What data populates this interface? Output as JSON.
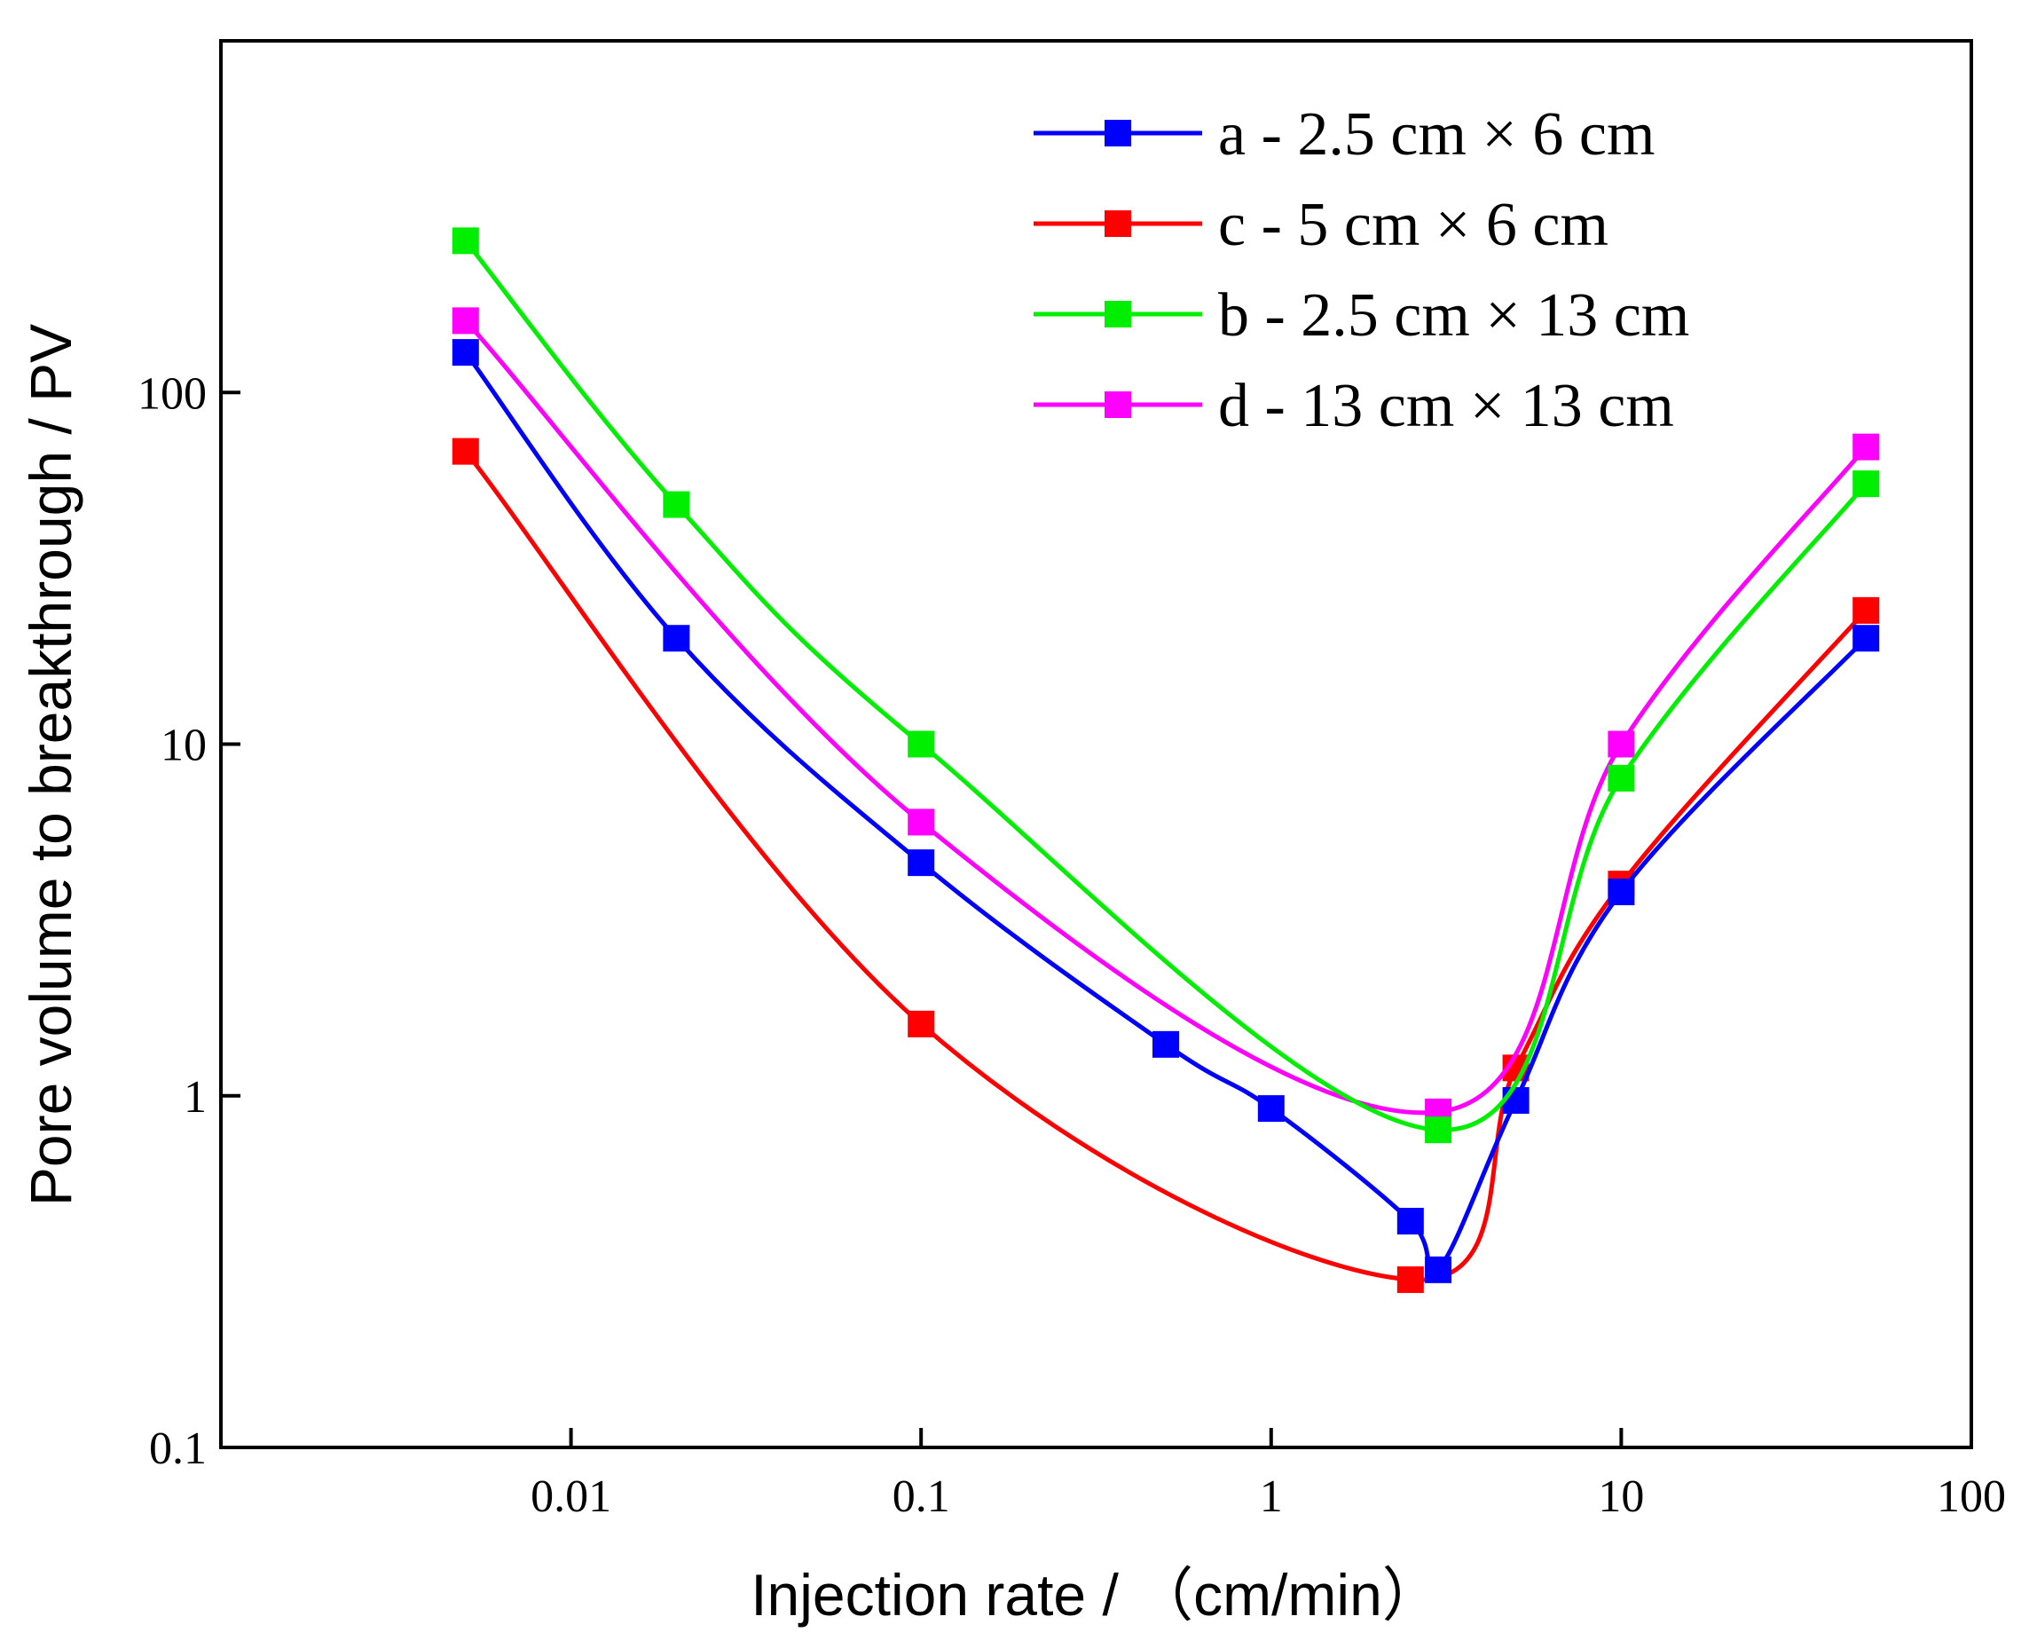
{
  "chart_data": {
    "type": "line",
    "xlabel": "Injection rate / （cm/min）",
    "ylabel": "Pore volume to breakthrough / PV",
    "xscale": "log",
    "yscale": "log",
    "xlim": [
      0.001,
      100
    ],
    "ylim": [
      0.1,
      1000
    ],
    "x_ticks": [
      {
        "value": 0.01,
        "label": "0.01"
      },
      {
        "value": 0.1,
        "label": "0.1"
      },
      {
        "value": 1,
        "label": "1"
      },
      {
        "value": 10,
        "label": "10"
      },
      {
        "value": 100,
        "label": "100"
      }
    ],
    "y_ticks": [
      {
        "value": 0.1,
        "label": "0.1"
      },
      {
        "value": 1,
        "label": "1"
      },
      {
        "value": 10,
        "label": "10"
      },
      {
        "value": 100,
        "label": "100"
      }
    ],
    "grid": false,
    "legend_position": "top-right",
    "series": [
      {
        "name": "a - 2.5 cm × 6 cm",
        "color": "#0000ff",
        "points": [
          [
            0.005,
            130
          ],
          [
            0.02,
            20
          ],
          [
            0.1,
            4.6
          ],
          [
            0.5,
            1.4
          ],
          [
            1,
            0.92
          ],
          [
            2.5,
            0.44
          ],
          [
            3,
            0.32
          ],
          [
            5,
            0.97
          ],
          [
            10,
            3.8
          ],
          [
            50,
            20
          ]
        ]
      },
      {
        "name": "c - 5 cm × 6 cm",
        "color": "#ff0000",
        "points": [
          [
            0.005,
            68
          ],
          [
            0.1,
            1.6
          ],
          [
            2.5,
            0.3
          ],
          [
            5,
            1.2
          ],
          [
            10,
            4.0
          ],
          [
            50,
            24
          ]
        ]
      },
      {
        "name": "b - 2.5 cm × 13 cm",
        "color": "#00ee00",
        "points": [
          [
            0.005,
            270
          ],
          [
            0.02,
            48
          ],
          [
            0.1,
            10
          ],
          [
            3,
            0.8
          ],
          [
            10,
            8
          ],
          [
            50,
            55
          ]
        ]
      },
      {
        "name": "d - 13 cm × 13 cm",
        "color": "#ff00ff",
        "points": [
          [
            0.005,
            160
          ],
          [
            0.1,
            6
          ],
          [
            3,
            0.9
          ],
          [
            10,
            10
          ],
          [
            50,
            70
          ]
        ]
      }
    ]
  }
}
